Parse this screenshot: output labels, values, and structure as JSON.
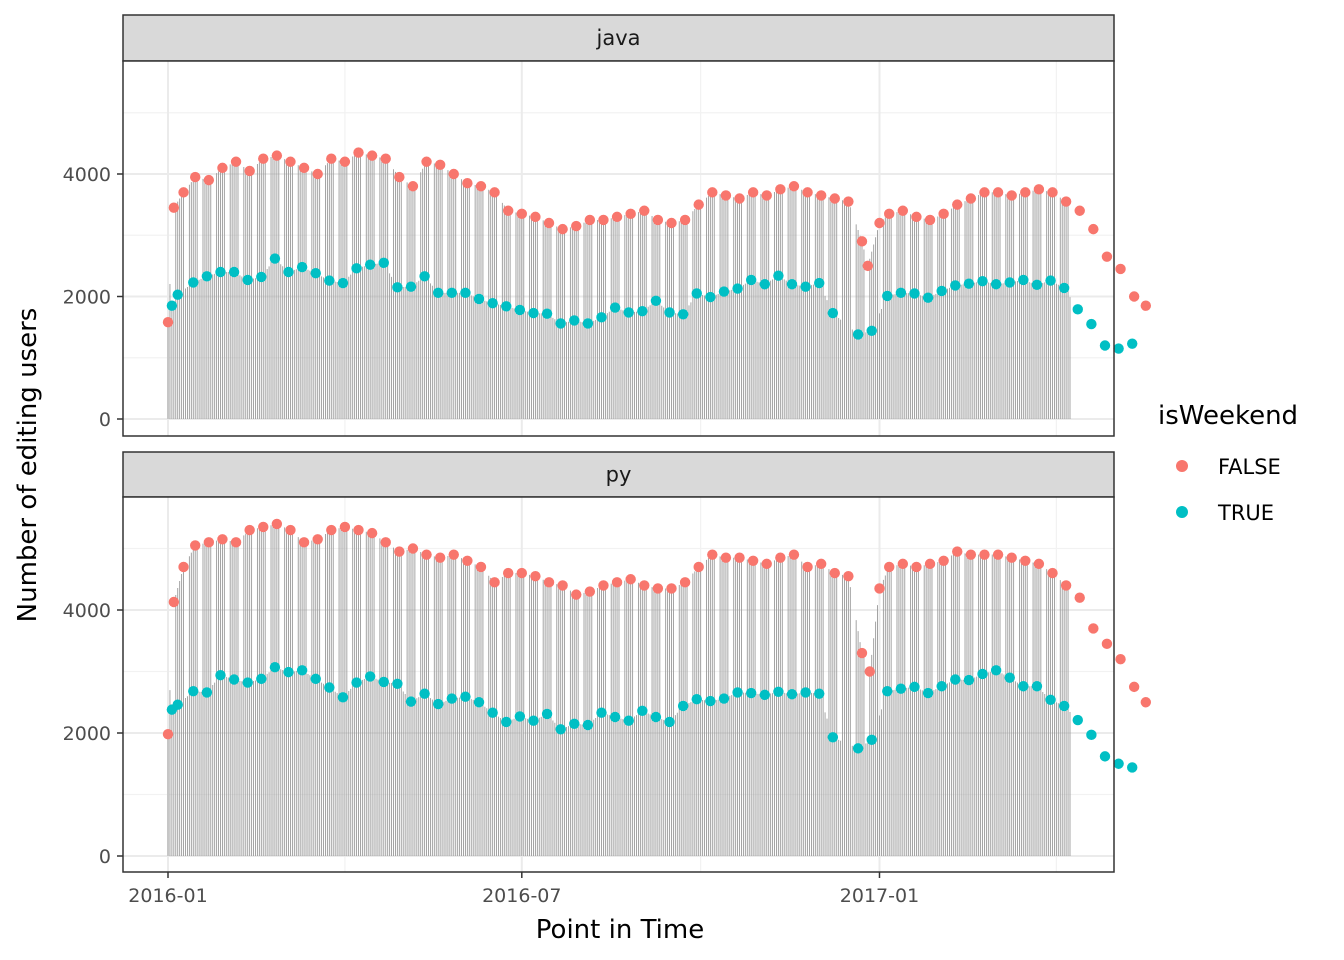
{
  "chart_data": {
    "type": "scatter",
    "overlay": "vertical segments from 0 to each value (lollipop)",
    "title": "",
    "xlabel": "Point in Time",
    "ylabel": "Number of editing users",
    "x_ticks": [
      "2016-01",
      "2016-07",
      "2017-01"
    ],
    "y_ticks": [
      0,
      2000,
      4000
    ],
    "ylim": [
      0,
      5800
    ],
    "xlim": [
      "2015-12-20",
      "2017-04-20"
    ],
    "grid": true,
    "legend": {
      "title": "isWeekend",
      "position": "right",
      "entries": [
        {
          "label": "FALSE",
          "color": "#F8766D"
        },
        {
          "label": "TRUE",
          "color": "#00BFC4"
        }
      ]
    },
    "date_range": [
      "2016-01-01",
      "2017-04-09"
    ],
    "facets": [
      {
        "label": "java",
        "weekday_series": [
          [
            0,
            1580
          ],
          [
            3,
            3450
          ],
          [
            8,
            3700
          ],
          [
            14,
            3950
          ],
          [
            21,
            3900
          ],
          [
            28,
            4100
          ],
          [
            35,
            4200
          ],
          [
            42,
            4050
          ],
          [
            49,
            4250
          ],
          [
            56,
            4300
          ],
          [
            63,
            4200
          ],
          [
            70,
            4100
          ],
          [
            77,
            4000
          ],
          [
            84,
            4250
          ],
          [
            91,
            4200
          ],
          [
            98,
            4350
          ],
          [
            105,
            4300
          ],
          [
            112,
            4250
          ],
          [
            119,
            3950
          ],
          [
            126,
            3800
          ],
          [
            133,
            4200
          ],
          [
            140,
            4150
          ],
          [
            147,
            4000
          ],
          [
            154,
            3850
          ],
          [
            161,
            3800
          ],
          [
            168,
            3700
          ],
          [
            175,
            3400
          ],
          [
            182,
            3350
          ],
          [
            189,
            3300
          ],
          [
            196,
            3200
          ],
          [
            203,
            3100
          ],
          [
            210,
            3150
          ],
          [
            217,
            3250
          ],
          [
            224,
            3250
          ],
          [
            231,
            3300
          ],
          [
            238,
            3350
          ],
          [
            245,
            3400
          ],
          [
            252,
            3250
          ],
          [
            259,
            3200
          ],
          [
            266,
            3250
          ],
          [
            273,
            3500
          ],
          [
            280,
            3700
          ],
          [
            287,
            3650
          ],
          [
            294,
            3600
          ],
          [
            301,
            3700
          ],
          [
            308,
            3650
          ],
          [
            315,
            3750
          ],
          [
            322,
            3800
          ],
          [
            329,
            3700
          ],
          [
            336,
            3650
          ],
          [
            343,
            3600
          ],
          [
            350,
            3550
          ],
          [
            357,
            2900
          ],
          [
            360,
            2500
          ],
          [
            366,
            3200
          ],
          [
            371,
            3350
          ],
          [
            378,
            3400
          ],
          [
            385,
            3300
          ],
          [
            392,
            3250
          ],
          [
            399,
            3350
          ],
          [
            406,
            3500
          ],
          [
            413,
            3600
          ],
          [
            420,
            3700
          ],
          [
            427,
            3700
          ],
          [
            434,
            3650
          ],
          [
            441,
            3700
          ],
          [
            448,
            3750
          ],
          [
            455,
            3700
          ],
          [
            462,
            3550
          ],
          [
            469,
            3400
          ],
          [
            476,
            3100
          ],
          [
            483,
            2650
          ],
          [
            490,
            2450
          ],
          [
            497,
            2000
          ],
          [
            503,
            1850
          ]
        ],
        "weekend_series": [
          [
            2,
            1850
          ],
          [
            5,
            2030
          ],
          [
            13,
            2230
          ],
          [
            20,
            2330
          ],
          [
            27,
            2400
          ],
          [
            34,
            2400
          ],
          [
            41,
            2270
          ],
          [
            48,
            2320
          ],
          [
            55,
            2620
          ],
          [
            62,
            2400
          ],
          [
            69,
            2480
          ],
          [
            76,
            2380
          ],
          [
            83,
            2260
          ],
          [
            90,
            2220
          ],
          [
            97,
            2460
          ],
          [
            104,
            2520
          ],
          [
            111,
            2550
          ],
          [
            118,
            2150
          ],
          [
            125,
            2160
          ],
          [
            132,
            2330
          ],
          [
            139,
            2060
          ],
          [
            146,
            2060
          ],
          [
            153,
            2060
          ],
          [
            160,
            1960
          ],
          [
            167,
            1890
          ],
          [
            174,
            1840
          ],
          [
            181,
            1780
          ],
          [
            188,
            1730
          ],
          [
            195,
            1720
          ],
          [
            202,
            1560
          ],
          [
            209,
            1610
          ],
          [
            216,
            1560
          ],
          [
            223,
            1660
          ],
          [
            230,
            1820
          ],
          [
            237,
            1740
          ],
          [
            244,
            1760
          ],
          [
            251,
            1930
          ],
          [
            258,
            1740
          ],
          [
            265,
            1710
          ],
          [
            272,
            2050
          ],
          [
            279,
            1990
          ],
          [
            286,
            2080
          ],
          [
            293,
            2130
          ],
          [
            300,
            2270
          ],
          [
            307,
            2200
          ],
          [
            314,
            2340
          ],
          [
            321,
            2200
          ],
          [
            328,
            2160
          ],
          [
            335,
            2220
          ],
          [
            342,
            1730
          ],
          [
            355,
            1380
          ],
          [
            362,
            1440
          ],
          [
            370,
            2010
          ],
          [
            377,
            2060
          ],
          [
            384,
            2050
          ],
          [
            391,
            1980
          ],
          [
            398,
            2090
          ],
          [
            405,
            2180
          ],
          [
            412,
            2210
          ],
          [
            419,
            2250
          ],
          [
            426,
            2200
          ],
          [
            433,
            2230
          ],
          [
            440,
            2270
          ],
          [
            447,
            2190
          ],
          [
            454,
            2260
          ],
          [
            461,
            2140
          ],
          [
            468,
            1790
          ],
          [
            475,
            1550
          ],
          [
            482,
            1200
          ],
          [
            489,
            1150
          ],
          [
            496,
            1230
          ]
        ]
      },
      {
        "label": "py",
        "weekday_series": [
          [
            0,
            1980
          ],
          [
            3,
            4130
          ],
          [
            8,
            4700
          ],
          [
            14,
            5050
          ],
          [
            21,
            5100
          ],
          [
            28,
            5150
          ],
          [
            35,
            5100
          ],
          [
            42,
            5300
          ],
          [
            49,
            5350
          ],
          [
            56,
            5400
          ],
          [
            63,
            5300
          ],
          [
            70,
            5100
          ],
          [
            77,
            5150
          ],
          [
            84,
            5300
          ],
          [
            91,
            5350
          ],
          [
            98,
            5300
          ],
          [
            105,
            5250
          ],
          [
            112,
            5100
          ],
          [
            119,
            4950
          ],
          [
            126,
            5000
          ],
          [
            133,
            4900
          ],
          [
            140,
            4850
          ],
          [
            147,
            4900
          ],
          [
            154,
            4800
          ],
          [
            161,
            4700
          ],
          [
            168,
            4450
          ],
          [
            175,
            4600
          ],
          [
            182,
            4600
          ],
          [
            189,
            4550
          ],
          [
            196,
            4450
          ],
          [
            203,
            4400
          ],
          [
            210,
            4250
          ],
          [
            217,
            4300
          ],
          [
            224,
            4400
          ],
          [
            231,
            4450
          ],
          [
            238,
            4500
          ],
          [
            245,
            4400
          ],
          [
            252,
            4350
          ],
          [
            259,
            4350
          ],
          [
            266,
            4450
          ],
          [
            273,
            4700
          ],
          [
            280,
            4900
          ],
          [
            287,
            4850
          ],
          [
            294,
            4850
          ],
          [
            301,
            4800
          ],
          [
            308,
            4750
          ],
          [
            315,
            4850
          ],
          [
            322,
            4900
          ],
          [
            329,
            4700
          ],
          [
            336,
            4750
          ],
          [
            343,
            4600
          ],
          [
            350,
            4550
          ],
          [
            357,
            3300
          ],
          [
            361,
            3000
          ],
          [
            366,
            4350
          ],
          [
            371,
            4700
          ],
          [
            378,
            4750
          ],
          [
            385,
            4700
          ],
          [
            392,
            4750
          ],
          [
            399,
            4800
          ],
          [
            406,
            4950
          ],
          [
            413,
            4900
          ],
          [
            420,
            4900
          ],
          [
            427,
            4900
          ],
          [
            434,
            4850
          ],
          [
            441,
            4800
          ],
          [
            448,
            4750
          ],
          [
            455,
            4600
          ],
          [
            462,
            4400
          ],
          [
            469,
            4200
          ],
          [
            476,
            3700
          ],
          [
            483,
            3450
          ],
          [
            490,
            3200
          ],
          [
            497,
            2750
          ],
          [
            503,
            2500
          ]
        ],
        "weekend_series": [
          [
            2,
            2380
          ],
          [
            5,
            2460
          ],
          [
            13,
            2680
          ],
          [
            20,
            2660
          ],
          [
            27,
            2940
          ],
          [
            34,
            2870
          ],
          [
            41,
            2820
          ],
          [
            48,
            2880
          ],
          [
            55,
            3070
          ],
          [
            62,
            2990
          ],
          [
            69,
            3020
          ],
          [
            76,
            2880
          ],
          [
            83,
            2740
          ],
          [
            90,
            2580
          ],
          [
            97,
            2820
          ],
          [
            104,
            2920
          ],
          [
            111,
            2830
          ],
          [
            118,
            2800
          ],
          [
            125,
            2510
          ],
          [
            132,
            2640
          ],
          [
            139,
            2470
          ],
          [
            146,
            2560
          ],
          [
            153,
            2590
          ],
          [
            160,
            2500
          ],
          [
            167,
            2330
          ],
          [
            174,
            2180
          ],
          [
            181,
            2270
          ],
          [
            188,
            2200
          ],
          [
            195,
            2310
          ],
          [
            202,
            2060
          ],
          [
            209,
            2150
          ],
          [
            216,
            2130
          ],
          [
            223,
            2330
          ],
          [
            230,
            2260
          ],
          [
            237,
            2200
          ],
          [
            244,
            2360
          ],
          [
            251,
            2260
          ],
          [
            258,
            2180
          ],
          [
            265,
            2440
          ],
          [
            272,
            2550
          ],
          [
            279,
            2520
          ],
          [
            286,
            2560
          ],
          [
            293,
            2660
          ],
          [
            300,
            2650
          ],
          [
            307,
            2620
          ],
          [
            314,
            2670
          ],
          [
            321,
            2630
          ],
          [
            328,
            2660
          ],
          [
            335,
            2640
          ],
          [
            342,
            1930
          ],
          [
            355,
            1750
          ],
          [
            362,
            1890
          ],
          [
            370,
            2680
          ],
          [
            377,
            2720
          ],
          [
            384,
            2750
          ],
          [
            391,
            2650
          ],
          [
            398,
            2760
          ],
          [
            405,
            2870
          ],
          [
            412,
            2860
          ],
          [
            419,
            2960
          ],
          [
            426,
            3020
          ],
          [
            433,
            2900
          ],
          [
            440,
            2760
          ],
          [
            447,
            2760
          ],
          [
            454,
            2540
          ],
          [
            461,
            2440
          ],
          [
            468,
            2210
          ],
          [
            475,
            1970
          ],
          [
            482,
            1620
          ],
          [
            489,
            1500
          ],
          [
            496,
            1440
          ]
        ]
      }
    ]
  }
}
